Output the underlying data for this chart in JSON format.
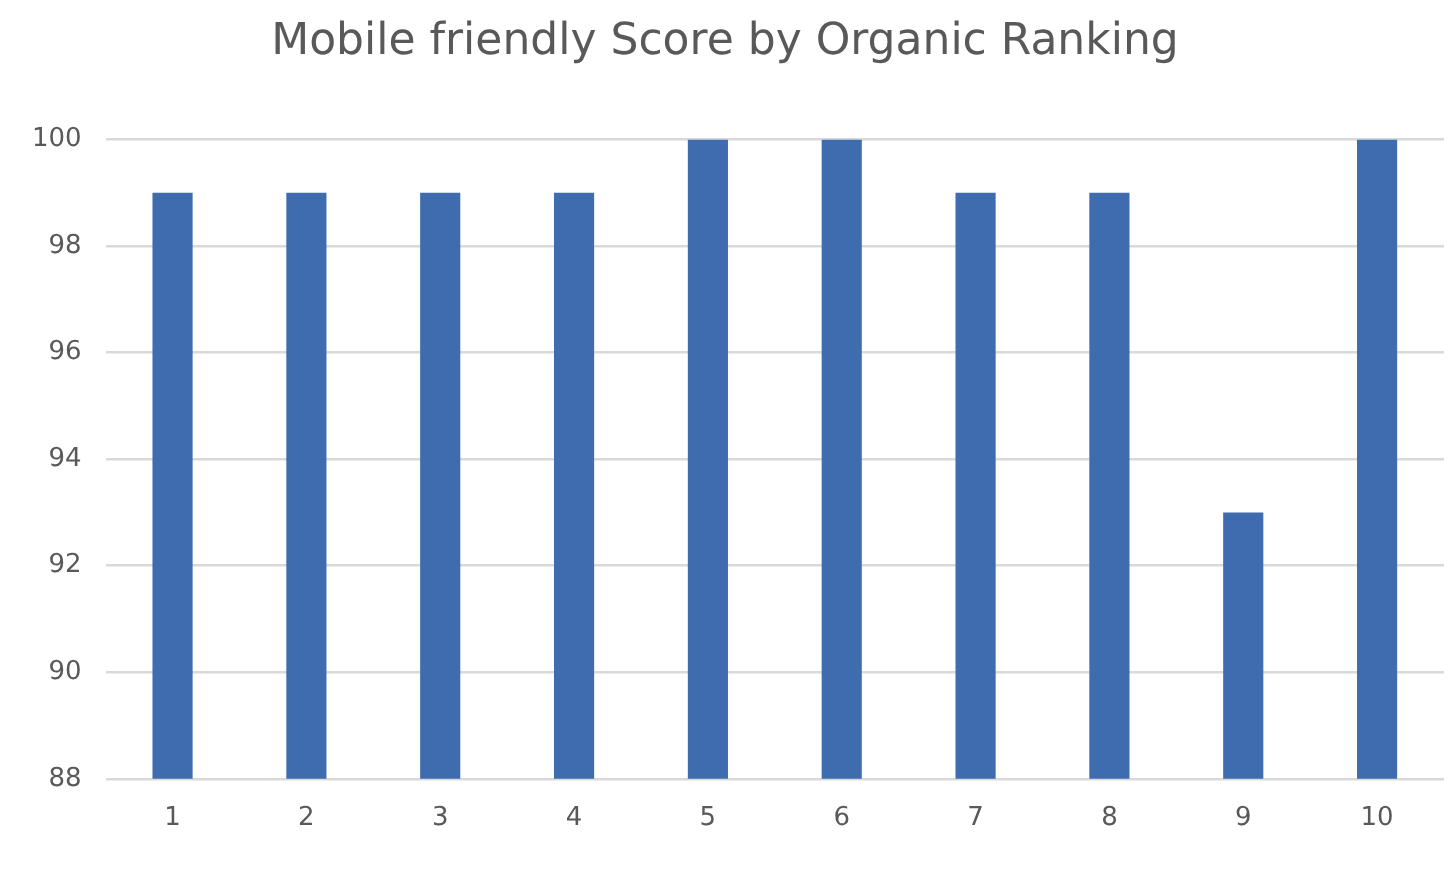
{
  "chart_data": {
    "type": "bar",
    "title": "Mobile friendly Score by Organic Ranking",
    "categories": [
      "1",
      "2",
      "3",
      "4",
      "5",
      "6",
      "7",
      "8",
      "9",
      "10"
    ],
    "values": [
      99,
      99,
      99,
      99,
      100,
      100,
      99,
      99,
      93,
      100
    ],
    "color": "#3f6cae",
    "ylim": [
      88,
      100
    ],
    "yticks": [
      88,
      90,
      92,
      94,
      96,
      98,
      100
    ],
    "grid": "y"
  }
}
